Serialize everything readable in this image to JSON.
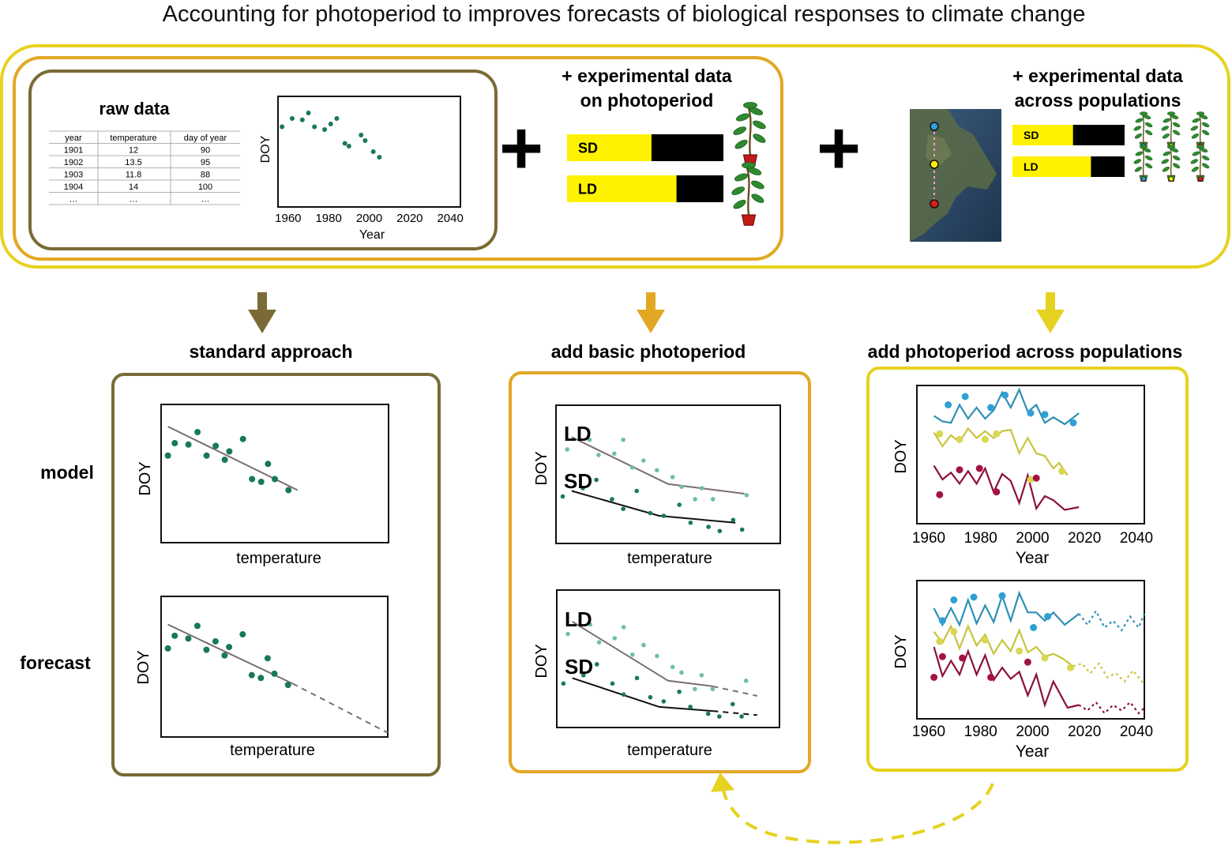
{
  "title": "Accounting for photoperiod to improves forecasts of biological responses to climate change",
  "colors": {
    "brown": "#7A6A35",
    "gold": "#E2A824",
    "yellow": "#E6D221",
    "bar_yellow": "#FFF200",
    "green_dark": "#18795A",
    "green_light": "#6FC0A0",
    "trend_gray": "#7A6E6E",
    "pop_blue": "#2E8FB4",
    "pop_blue_pt": "#2FA0D3",
    "pop_yellow": "#C8C43D",
    "pop_yellow_pt": "#D9D654",
    "pop_red": "#8B1138",
    "pop_red_pt": "#A4133F"
  },
  "raw_data": {
    "heading": "raw data",
    "table": {
      "columns": [
        "year",
        "temperature",
        "day of year"
      ],
      "rows": [
        [
          "1901",
          "12",
          "90"
        ],
        [
          "1902",
          "13.5",
          "95"
        ],
        [
          "1903",
          "11.8",
          "88"
        ],
        [
          "1904",
          "14",
          "100"
        ],
        [
          "…",
          "…",
          "…"
        ]
      ]
    }
  },
  "plus": "+",
  "experimental_photoperiod": {
    "heading_line1": "+ experimental data",
    "heading_line2": "on photoperiod",
    "bars": [
      {
        "label": "SD",
        "light_fraction": 0.54
      },
      {
        "label": "LD",
        "light_fraction": 0.7
      }
    ]
  },
  "experimental_populations": {
    "heading_line1": "+ experimental data",
    "heading_line2": "across populations",
    "bars": [
      {
        "label": "SD",
        "light_fraction": 0.54
      },
      {
        "label": "LD",
        "light_fraction": 0.7
      }
    ],
    "map_markers": [
      "blue",
      "yellow",
      "red"
    ]
  },
  "panels": [
    {
      "heading": "standard approach"
    },
    {
      "heading": "add basic photoperiod"
    },
    {
      "heading": "add photoperiod across populations"
    }
  ],
  "row_labels": {
    "model": "model",
    "forecast": "forecast"
  },
  "curve_labels": {
    "ld": "LD",
    "sd": "SD"
  },
  "chart_data": [
    {
      "id": "raw",
      "type": "scatter",
      "xlabel": "Year",
      "ylabel": "DOY",
      "xticks": [
        "1960",
        "1980",
        "2000",
        "2020",
        "2040"
      ],
      "xlim": [
        1955,
        2045
      ],
      "ylim": [
        60,
        140
      ],
      "series": [
        {
          "x": [
            1957,
            1962,
            1967,
            1970,
            1973,
            1978,
            1981,
            1984,
            1988,
            1990,
            1996,
            1998,
            2002,
            2005
          ],
          "y": [
            118,
            124,
            123,
            128,
            118,
            116,
            120,
            124,
            106,
            104,
            112,
            108,
            100,
            96
          ]
        }
      ]
    },
    {
      "id": "std-model",
      "type": "scatter",
      "xlabel": "temperature",
      "ylabel": "DOY",
      "xlim": [
        0,
        10
      ],
      "ylim": [
        0,
        10
      ],
      "series": [
        {
          "x": [
            0.3,
            0.6,
            1.2,
            1.6,
            2.0,
            2.4,
            2.8,
            3.0,
            3.6,
            4.0,
            4.4,
            4.7,
            5.0,
            5.6
          ],
          "y": [
            6.3,
            7.2,
            7.1,
            8.0,
            6.3,
            7.0,
            6.0,
            6.6,
            7.5,
            4.6,
            4.4,
            5.7,
            4.6,
            3.8
          ]
        }
      ],
      "trend": {
        "x": [
          0.3,
          6.0
        ],
        "y": [
          8.4,
          3.8
        ]
      }
    },
    {
      "id": "std-forecast",
      "type": "scatter",
      "xlabel": "temperature",
      "ylabel": "DOY",
      "xlim": [
        0,
        10
      ],
      "ylim": [
        0,
        10
      ],
      "series": [
        {
          "x": [
            0.3,
            0.6,
            1.2,
            1.6,
            2.0,
            2.4,
            2.8,
            3.0,
            3.6,
            4.0,
            4.4,
            4.7,
            5.0,
            5.6
          ],
          "y": [
            6.3,
            7.2,
            7.0,
            7.9,
            6.2,
            6.8,
            5.8,
            6.4,
            7.3,
            4.4,
            4.2,
            5.6,
            4.5,
            3.7
          ]
        }
      ],
      "trend": {
        "x": [
          0.3,
          5.8
        ],
        "y": [
          8.0,
          3.8
        ]
      },
      "forecast": {
        "x": [
          5.8,
          10
        ],
        "y": [
          3.8,
          0.3
        ]
      }
    },
    {
      "id": "photo-model",
      "type": "scatter",
      "xlabel": "temperature",
      "ylabel": "DOY",
      "xlim": [
        0,
        10
      ],
      "ylim": [
        0,
        10
      ],
      "series": [
        {
          "name": "LD",
          "x": [
            0.5,
            1.5,
            1.9,
            2.6,
            3.0,
            3.4,
            3.9,
            4.5,
            5.2,
            5.6,
            6.2,
            6.5,
            7.0,
            8.5
          ],
          "y": [
            6.8,
            7.5,
            6.4,
            6.5,
            7.5,
            5.5,
            6.0,
            5.3,
            4.8,
            4.1,
            3.2,
            4.0,
            3.2,
            3.5
          ]
        },
        {
          "name": "SD",
          "x": [
            0.3,
            1.2,
            1.8,
            2.5,
            3.0,
            3.6,
            4.2,
            4.8,
            5.5,
            6.0,
            6.8,
            7.3,
            7.9,
            8.3
          ],
          "y": [
            3.4,
            4.0,
            4.6,
            3.2,
            2.5,
            3.8,
            2.2,
            2.0,
            2.8,
            1.5,
            1.2,
            0.9,
            1.7,
            1.0
          ]
        }
      ],
      "trend": [
        {
          "name": "LD",
          "x": [
            0.7,
            5.0,
            8.4
          ],
          "y": [
            7.7,
            4.3,
            3.6
          ]
        },
        {
          "name": "SD",
          "x": [
            0.7,
            4.6,
            8.0
          ],
          "y": [
            3.8,
            2.0,
            1.5
          ]
        }
      ]
    },
    {
      "id": "photo-forecast",
      "type": "scatter",
      "xlabel": "temperature",
      "ylabel": "DOY",
      "xlim": [
        0,
        10
      ],
      "ylim": [
        0,
        10
      ],
      "series": [
        {
          "name": "LD",
          "x": [
            0.5,
            1.5,
            1.9,
            2.6,
            3.0,
            3.4,
            3.9,
            4.5,
            5.2,
            5.6,
            6.2,
            6.5,
            7.0,
            8.5
          ],
          "y": [
            6.8,
            7.5,
            6.2,
            6.5,
            7.3,
            5.3,
            6.0,
            5.2,
            4.4,
            4.0,
            2.8,
            3.8,
            2.8,
            3.4
          ]
        },
        {
          "name": "SD",
          "x": [
            0.3,
            1.2,
            1.8,
            2.5,
            3.0,
            3.6,
            4.2,
            4.8,
            5.5,
            6.0,
            6.8,
            7.3,
            7.9,
            8.3
          ],
          "y": [
            3.2,
            3.8,
            4.6,
            3.2,
            2.4,
            3.6,
            2.2,
            1.9,
            2.6,
            1.5,
            1.0,
            0.8,
            1.7,
            0.8
          ]
        }
      ],
      "trend": [
        {
          "name": "LD",
          "x": [
            0.7,
            5.0,
            7.0
          ],
          "y": [
            7.7,
            3.4,
            3.0
          ]
        },
        {
          "name": "SD",
          "x": [
            0.7,
            4.6,
            7.0
          ],
          "y": [
            3.6,
            1.5,
            1.2
          ]
        }
      ],
      "forecast": [
        {
          "name": "LD",
          "x": [
            7.0,
            9.0
          ],
          "y": [
            3.0,
            2.3
          ]
        },
        {
          "name": "SD",
          "x": [
            7.0,
            9.0
          ],
          "y": [
            1.2,
            0.9
          ]
        }
      ]
    },
    {
      "id": "pop-model",
      "type": "line",
      "xlabel": "Year",
      "ylabel": "DOY",
      "xticks": [
        "1960",
        "1980",
        "2000",
        "2020",
        "2040"
      ],
      "xlim": [
        1960,
        2040
      ],
      "ylim": [
        0,
        100
      ],
      "series": [
        {
          "name": "blue",
          "x": [
            1966,
            1969,
            1972,
            1975,
            1978,
            1981,
            1984,
            1987,
            1990,
            1993,
            1996,
            1999,
            2002,
            2005,
            2008,
            2012,
            2017
          ],
          "y": [
            78,
            74,
            73,
            86,
            76,
            84,
            76,
            82,
            95,
            84,
            97,
            81,
            86,
            73,
            77,
            72,
            80
          ]
        },
        {
          "name": "yellow",
          "x": [
            1966,
            1969,
            1972,
            1975,
            1978,
            1981,
            1984,
            1987,
            1990,
            1993,
            1996,
            1999,
            2002,
            2005,
            2008,
            2010,
            2013
          ],
          "y": [
            66,
            56,
            64,
            59,
            69,
            62,
            67,
            62,
            67,
            68,
            51,
            62,
            51,
            49,
            40,
            44,
            35
          ]
        },
        {
          "name": "red",
          "x": [
            1966,
            1969,
            1972,
            1975,
            1978,
            1981,
            1984,
            1987,
            1990,
            1993,
            1996,
            1999,
            2002,
            2005,
            2008,
            2012,
            2017
          ],
          "y": [
            42,
            32,
            37,
            29,
            38,
            29,
            40,
            23,
            36,
            31,
            15,
            35,
            11,
            20,
            17,
            10,
            12
          ]
        }
      ],
      "points": [
        {
          "name": "blue",
          "x": [
            1971,
            1977,
            1986,
            1991,
            2000,
            2005,
            2015
          ],
          "y": [
            86,
            92,
            84,
            93,
            80,
            79,
            73
          ]
        },
        {
          "name": "yellow",
          "x": [
            1968,
            1975,
            1984,
            1988,
            2000,
            2011
          ],
          "y": [
            65,
            61,
            61,
            65,
            32,
            38
          ]
        },
        {
          "name": "red",
          "x": [
            1968,
            1975,
            1982,
            1988,
            2002
          ],
          "y": [
            21,
            39,
            40,
            23,
            33
          ]
        }
      ]
    },
    {
      "id": "pop-forecast",
      "type": "line",
      "xlabel": "Year",
      "ylabel": "DOY",
      "xticks": [
        "1960",
        "1980",
        "2000",
        "2020",
        "2040"
      ],
      "xlim": [
        1960,
        2040
      ],
      "ylim": [
        0,
        100
      ],
      "series": [
        {
          "name": "blue",
          "x": [
            1966,
            1969,
            1972,
            1975,
            1978,
            1981,
            1984,
            1987,
            1990,
            1993,
            1996,
            1999,
            2002,
            2005,
            2008,
            2012,
            2017
          ],
          "y": [
            80,
            68,
            80,
            68,
            86,
            69,
            82,
            70,
            89,
            71,
            91,
            77,
            77,
            71,
            77,
            68,
            76
          ]
        },
        {
          "name": "yellow",
          "x": [
            1966,
            1969,
            1972,
            1975,
            1978,
            1981,
            1984,
            1987,
            1990,
            1993,
            1996,
            1999,
            2002,
            2005,
            2008,
            2011,
            2015
          ],
          "y": [
            63,
            55,
            67,
            51,
            67,
            53,
            61,
            47,
            57,
            49,
            64,
            48,
            52,
            45,
            47,
            44,
            38
          ]
        },
        {
          "name": "red",
          "x": [
            1966,
            1969,
            1972,
            1975,
            1978,
            1981,
            1984,
            1987,
            1990,
            1993,
            1996,
            1999,
            2002,
            2005,
            2008,
            2013,
            2017
          ],
          "y": [
            52,
            31,
            42,
            32,
            49,
            32,
            46,
            28,
            37,
            29,
            34,
            17,
            32,
            10,
            27,
            8,
            10
          ]
        }
      ],
      "forecast": [
        {
          "name": "blue",
          "x": [
            2017,
            2020,
            2023,
            2026,
            2029,
            2032,
            2035,
            2038,
            2040
          ],
          "y": [
            76,
            68,
            78,
            66,
            71,
            64,
            74,
            66,
            76
          ]
        },
        {
          "name": "yellow",
          "x": [
            2015,
            2018,
            2021,
            2024,
            2027,
            2030,
            2033,
            2036,
            2040
          ],
          "y": [
            38,
            40,
            33,
            40,
            30,
            33,
            27,
            35,
            25
          ]
        },
        {
          "name": "red",
          "x": [
            2017,
            2020,
            2023,
            2026,
            2029,
            2032,
            2035,
            2038,
            2040
          ],
          "y": [
            10,
            6,
            12,
            4,
            10,
            6,
            12,
            4,
            8
          ]
        }
      ],
      "points": [
        {
          "name": "blue",
          "x": [
            1969,
            1973,
            1980,
            1990,
            2001,
            2006
          ],
          "y": [
            71,
            86,
            88,
            89,
            66,
            74
          ]
        },
        {
          "name": "yellow",
          "x": [
            1968,
            1973,
            1984,
            1996,
            2005,
            2014
          ],
          "y": [
            56,
            63,
            57,
            49,
            44,
            37
          ]
        },
        {
          "name": "red",
          "x": [
            1966,
            1969,
            1976,
            1986,
            1999
          ],
          "y": [
            30,
            45,
            44,
            30,
            41
          ]
        }
      ]
    }
  ]
}
